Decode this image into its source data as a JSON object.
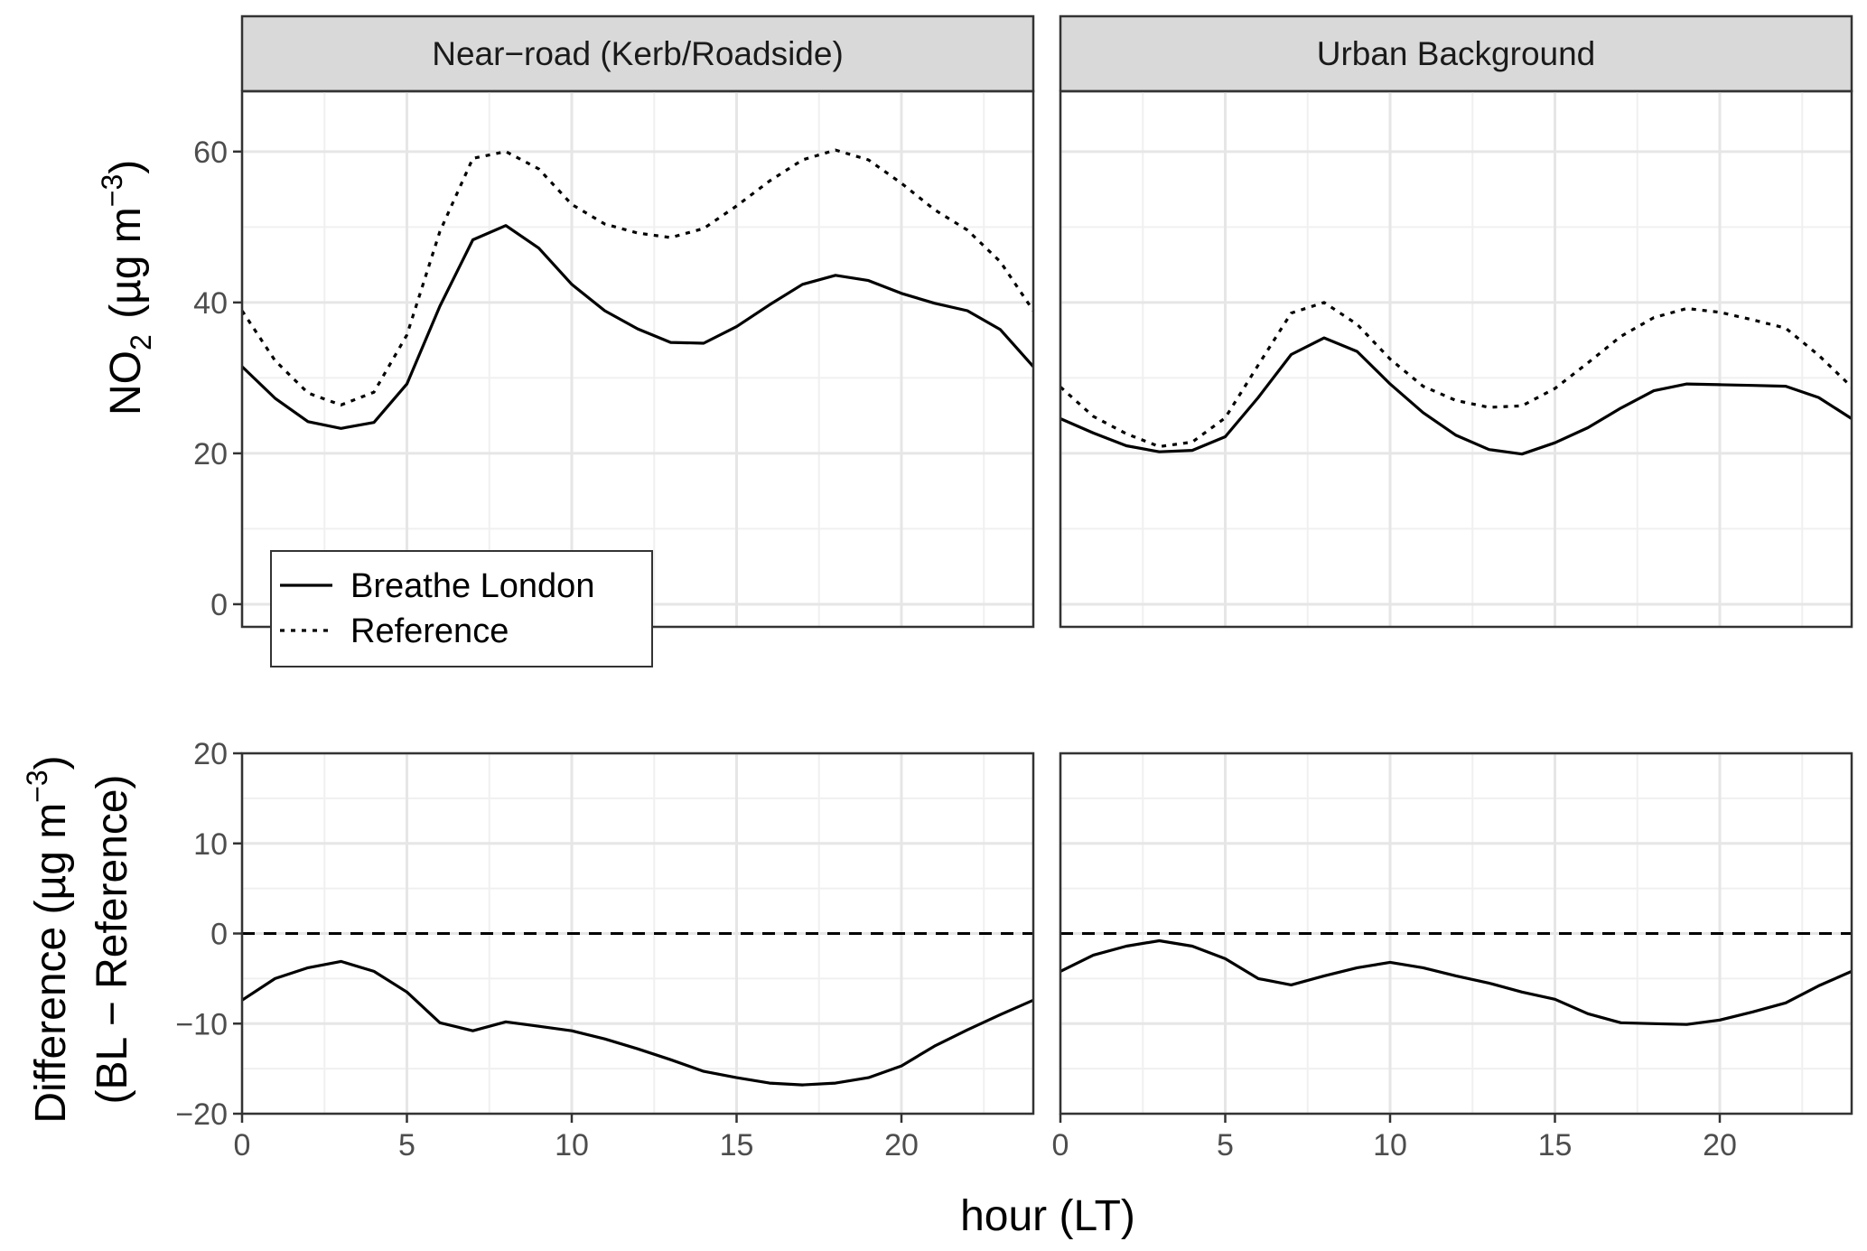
{
  "figure": {
    "x_axis_title": "hour (LT)",
    "panels": [
      "Near−road (Kerb/Roadside)",
      "Urban Background"
    ]
  },
  "chart_data": [
    {
      "type": "line",
      "panel": "Near−road (Kerb/Roadside)",
      "row": "top",
      "ylabel": "NO2 (µg m−3)",
      "x": [
        0,
        1,
        2,
        3,
        4,
        5,
        6,
        7,
        8,
        9,
        10,
        11,
        12,
        13,
        14,
        15,
        16,
        17,
        18,
        19,
        20,
        21,
        22,
        23,
        24
      ],
      "xlim": [
        0,
        24
      ],
      "xticks": [
        0,
        5,
        10,
        15,
        20
      ],
      "ylim": [
        -3,
        68
      ],
      "yticks": [
        0,
        20,
        40,
        60
      ],
      "legend": {
        "position": "bottom-left",
        "entries": [
          "Breathe London",
          "Reference"
        ]
      },
      "series": [
        {
          "name": "Breathe London",
          "linestyle": "solid",
          "values": [
            31.5,
            27.3,
            24.2,
            23.3,
            24.1,
            29.2,
            39.5,
            48.3,
            50.2,
            47.2,
            42.4,
            38.9,
            36.5,
            34.7,
            34.6,
            36.8,
            39.7,
            42.4,
            43.6,
            42.9,
            41.2,
            39.9,
            38.9,
            36.4,
            31.5
          ]
        },
        {
          "name": "Reference",
          "linestyle": "dotted",
          "values": [
            38.9,
            32.3,
            28.0,
            26.4,
            28.1,
            35.7,
            49.4,
            59.1,
            60.0,
            57.7,
            53.0,
            50.4,
            49.2,
            48.6,
            49.8,
            52.8,
            56.1,
            58.9,
            60.2,
            58.9,
            55.8,
            52.3,
            49.6,
            45.4,
            38.9
          ]
        }
      ]
    },
    {
      "type": "line",
      "panel": "Urban Background",
      "row": "top",
      "x": [
        0,
        1,
        2,
        3,
        4,
        5,
        6,
        7,
        8,
        9,
        10,
        11,
        12,
        13,
        14,
        15,
        16,
        17,
        18,
        19,
        20,
        21,
        22,
        23,
        24
      ],
      "xlim": [
        0,
        24
      ],
      "xticks": [
        0,
        5,
        10,
        15,
        20
      ],
      "ylim": [
        -3,
        68
      ],
      "yticks": [
        0,
        20,
        40,
        60
      ],
      "series": [
        {
          "name": "Breathe London",
          "linestyle": "solid",
          "values": [
            24.6,
            22.7,
            21.0,
            20.2,
            20.4,
            22.2,
            27.4,
            33.1,
            35.3,
            33.5,
            29.2,
            25.4,
            22.4,
            20.5,
            19.9,
            21.4,
            23.4,
            26.0,
            28.3,
            29.2,
            29.1,
            29.0,
            28.9,
            27.4,
            24.6
          ]
        },
        {
          "name": "Reference",
          "linestyle": "dotted",
          "values": [
            28.8,
            24.9,
            22.6,
            20.9,
            21.5,
            24.7,
            31.7,
            38.6,
            40.0,
            37.1,
            32.5,
            28.9,
            27.0,
            26.1,
            26.3,
            28.6,
            32.0,
            35.5,
            38.0,
            39.2,
            38.7,
            37.7,
            36.6,
            33.0,
            28.8
          ]
        }
      ]
    },
    {
      "type": "line",
      "panel": "Near−road (Kerb/Roadside)",
      "row": "bottom",
      "ylabel": "Difference (µg m−3) (BL − Reference)",
      "x": [
        0,
        1,
        2,
        3,
        4,
        5,
        6,
        7,
        8,
        9,
        10,
        11,
        12,
        13,
        14,
        15,
        16,
        17,
        18,
        19,
        20,
        21,
        22,
        23,
        24
      ],
      "xlim": [
        0,
        24
      ],
      "xticks": [
        0,
        5,
        10,
        15,
        20
      ],
      "ylim": [
        -20,
        20
      ],
      "yticks": [
        -20,
        -10,
        0,
        10,
        20
      ],
      "reference_line": {
        "y": 0,
        "linestyle": "dashed"
      },
      "series": [
        {
          "name": "Breathe London − Reference",
          "linestyle": "solid",
          "values": [
            -7.4,
            -5.0,
            -3.8,
            -3.1,
            -4.2,
            -6.5,
            -9.9,
            -10.8,
            -9.8,
            -10.3,
            -10.8,
            -11.7,
            -12.8,
            -14.0,
            -15.3,
            -16.0,
            -16.6,
            -16.8,
            -16.6,
            -16.0,
            -14.7,
            -12.5,
            -10.7,
            -9.0,
            -7.4
          ]
        }
      ]
    },
    {
      "type": "line",
      "panel": "Urban Background",
      "row": "bottom",
      "x": [
        0,
        1,
        2,
        3,
        4,
        5,
        6,
        7,
        8,
        9,
        10,
        11,
        12,
        13,
        14,
        15,
        16,
        17,
        18,
        19,
        20,
        21,
        22,
        23,
        24
      ],
      "xlim": [
        0,
        24
      ],
      "xticks": [
        0,
        5,
        10,
        15,
        20
      ],
      "ylim": [
        -20,
        20
      ],
      "yticks": [
        -20,
        -10,
        0,
        10,
        20
      ],
      "reference_line": {
        "y": 0,
        "linestyle": "dashed"
      },
      "series": [
        {
          "name": "Breathe London − Reference",
          "linestyle": "solid",
          "values": [
            -4.2,
            -2.4,
            -1.4,
            -0.8,
            -1.4,
            -2.8,
            -5.0,
            -5.7,
            -4.7,
            -3.8,
            -3.2,
            -3.8,
            -4.7,
            -5.5,
            -6.5,
            -7.3,
            -8.9,
            -9.9,
            -10.0,
            -10.1,
            -9.6,
            -8.7,
            -7.7,
            -5.8,
            -4.2
          ]
        }
      ]
    }
  ]
}
